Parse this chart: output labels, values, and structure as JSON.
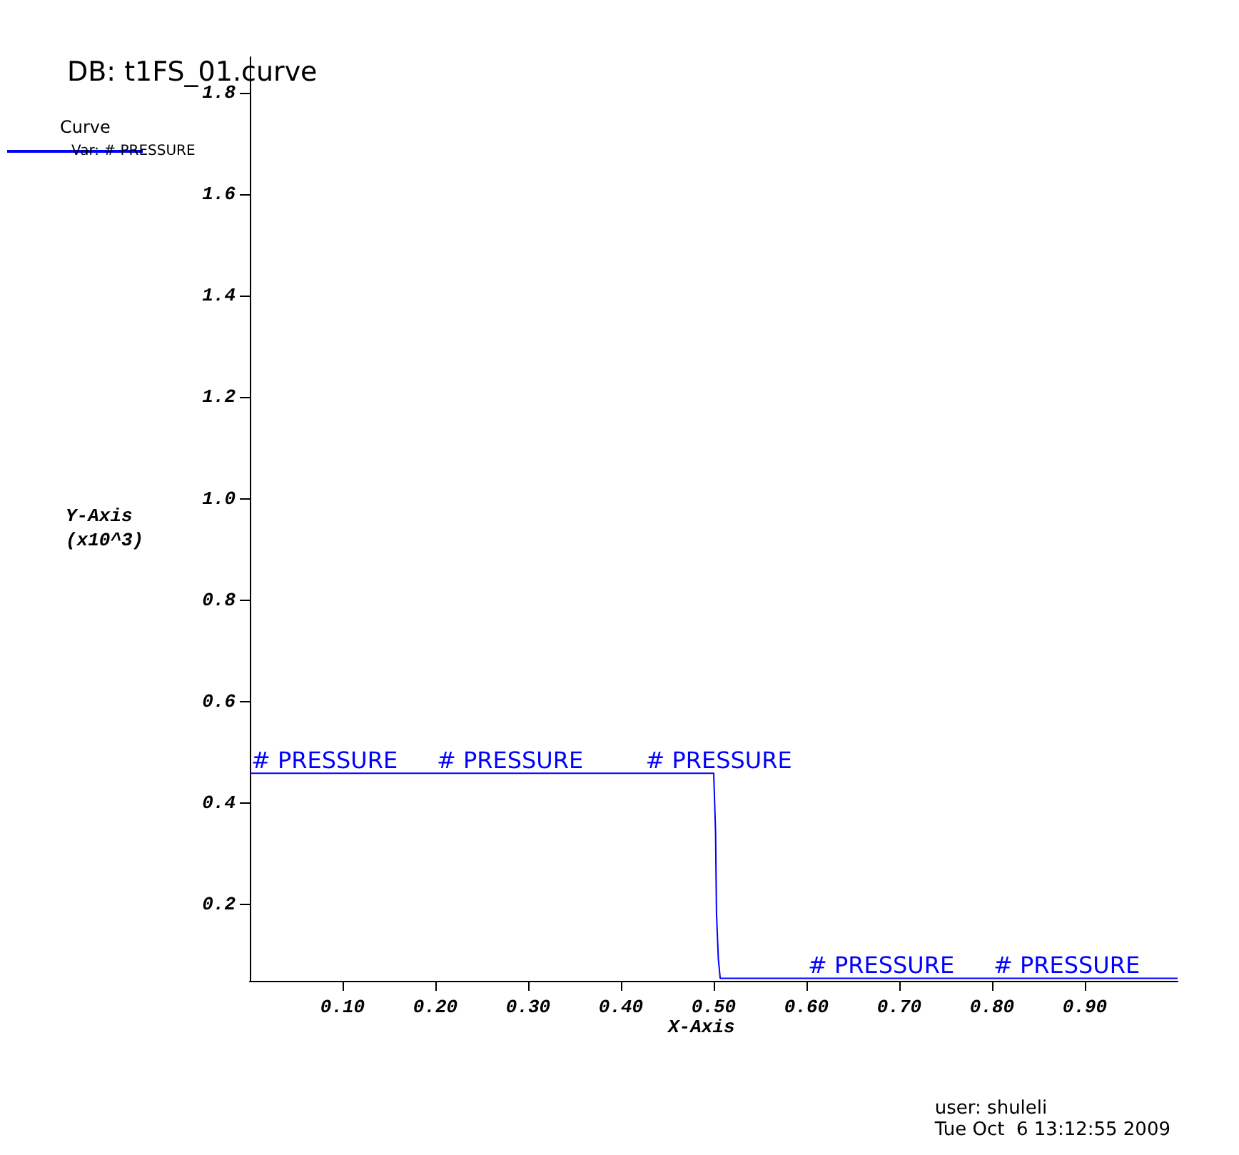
{
  "chart_data": {
    "type": "line",
    "title": "DB: t1FS_01.curve",
    "xlabel": "X-Axis",
    "ylabel": "Y-Axis\n(x10^3)",
    "legend_title": "Curve",
    "x": [
      0,
      0.5,
      0.502,
      0.503,
      0.505,
      0.507,
      1
    ],
    "series": [
      {
        "name": "Var: # PRESSURE",
        "color": "#0000ff",
        "values": [
          0.459,
          0.459,
          0.344,
          0.183,
          0.093,
          0.055,
          0.055
        ]
      }
    ],
    "xlim": [
      0,
      1
    ],
    "xticks": [
      {
        "value": 0.1,
        "label": "0.10"
      },
      {
        "value": 0.2,
        "label": "0.20"
      },
      {
        "value": 0.3,
        "label": "0.30"
      },
      {
        "value": 0.4,
        "label": "0.40"
      },
      {
        "value": 0.5,
        "label": "0.50"
      },
      {
        "value": 0.6,
        "label": "0.60"
      },
      {
        "value": 0.7,
        "label": "0.70"
      },
      {
        "value": 0.8,
        "label": "0.80"
      },
      {
        "value": 0.9,
        "label": "0.90"
      }
    ],
    "ylim": [
      0.05,
      1.87
    ],
    "yticks": [
      0.2,
      0.4,
      0.6,
      0.8,
      {
        "value": 1,
        "label": "1.0"
      },
      1.2,
      1.4,
      1.6,
      1.8
    ],
    "annotations": [
      {
        "text": "# PRESSURE",
        "x": 0,
        "y": 0.459
      },
      {
        "text": "# PRESSURE",
        "x": 0.2,
        "y": 0.459
      },
      {
        "text": "# PRESSURE",
        "x": 0.425,
        "y": 0.459
      },
      {
        "text": "# PRESSURE",
        "x": 0.6,
        "y": 0.055
      },
      {
        "text": "# PRESSURE",
        "x": 0.8,
        "y": 0.055
      },
      "user: shuleli\nTue Oct  6 13:12:55 2009"
    ],
    "grid": false,
    "legend": "top left",
    "marker": "none",
    "line_style": "solid"
  }
}
